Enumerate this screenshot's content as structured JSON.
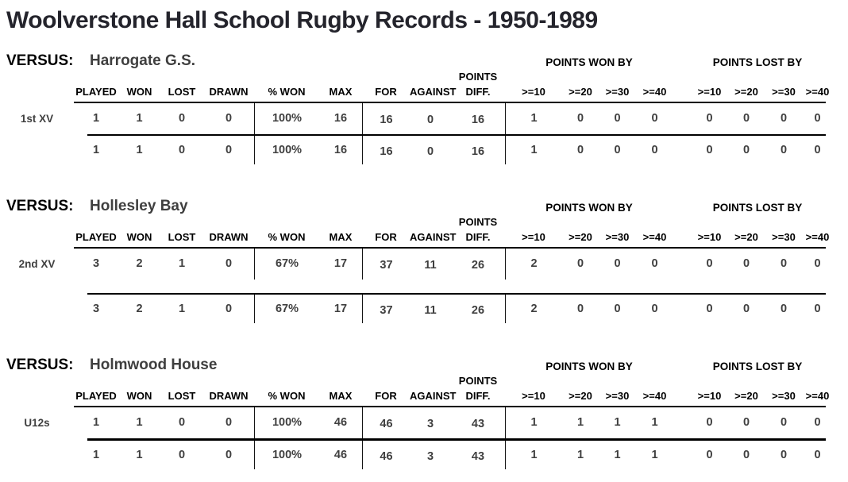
{
  "title": "Woolverstone Hall School Rugby Records - 1950-1989",
  "colors": {
    "heading_text": "#000000",
    "value_text": "#3f3f3f",
    "rule_lines": "#000000"
  },
  "labels": {
    "versus": "VERSUS:",
    "points_won_by": "POINTS WON BY",
    "points_lost_by": "POINTS LOST BY",
    "points": "POINTS",
    "diff": "DIFF.",
    "columns": [
      "PLAYED",
      "WON",
      "LOST",
      "DRAWN",
      "% WON",
      "MAX",
      "FOR",
      "AGAINST"
    ],
    "thresholds": [
      ">=10",
      ">=20",
      ">=30",
      ">=40"
    ]
  },
  "sections": [
    {
      "opponent": "Harrogate G.S.",
      "rows": [
        {
          "team": "1st XV",
          "played": "1",
          "won": "1",
          "lost": "0",
          "drawn": "0",
          "pct_won": "100%",
          "max": "16",
          "for": "16",
          "against": "0",
          "points_diff": "16",
          "won_by": [
            "1",
            "0",
            "0",
            "0"
          ],
          "lost_by": [
            "0",
            "0",
            "0",
            "0"
          ]
        },
        {
          "team": "",
          "played": "1",
          "won": "1",
          "lost": "0",
          "drawn": "0",
          "pct_won": "100%",
          "max": "16",
          "for": "16",
          "against": "0",
          "points_diff": "16",
          "won_by": [
            "1",
            "0",
            "0",
            "0"
          ],
          "lost_by": [
            "0",
            "0",
            "0",
            "0"
          ]
        }
      ]
    },
    {
      "opponent": "Hollesley Bay",
      "rows": [
        {
          "team": "2nd XV",
          "played": "3",
          "won": "2",
          "lost": "1",
          "drawn": "0",
          "pct_won": "67%",
          "max": "17",
          "for": "37",
          "against": "11",
          "points_diff": "26",
          "won_by": [
            "2",
            "0",
            "0",
            "0"
          ],
          "lost_by": [
            "0",
            "0",
            "0",
            "0"
          ]
        },
        {
          "team": "",
          "played": "3",
          "won": "2",
          "lost": "1",
          "drawn": "0",
          "pct_won": "67%",
          "max": "17",
          "for": "37",
          "against": "11",
          "points_diff": "26",
          "won_by": [
            "2",
            "0",
            "0",
            "0"
          ],
          "lost_by": [
            "0",
            "0",
            "0",
            "0"
          ]
        }
      ]
    },
    {
      "opponent": "Holmwood House",
      "rows": [
        {
          "team": "U12s",
          "played": "1",
          "won": "1",
          "lost": "0",
          "drawn": "0",
          "pct_won": "100%",
          "max": "46",
          "for": "46",
          "against": "3",
          "points_diff": "43",
          "won_by": [
            "1",
            "1",
            "1",
            "1"
          ],
          "lost_by": [
            "0",
            "0",
            "0",
            "0"
          ]
        },
        {
          "team": "",
          "played": "1",
          "won": "1",
          "lost": "0",
          "drawn": "0",
          "pct_won": "100%",
          "max": "46",
          "for": "46",
          "against": "3",
          "points_diff": "43",
          "won_by": [
            "1",
            "1",
            "1",
            "1"
          ],
          "lost_by": [
            "0",
            "0",
            "0",
            "0"
          ]
        }
      ]
    }
  ]
}
